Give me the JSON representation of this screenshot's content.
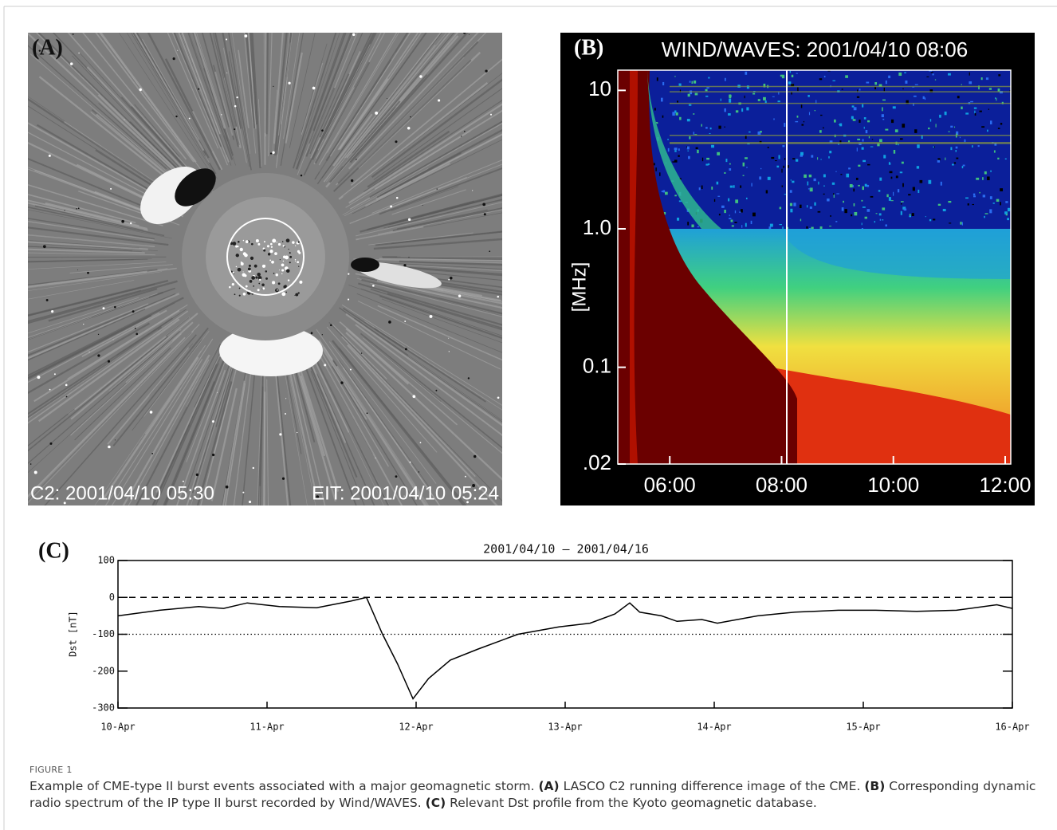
{
  "panel_a": {
    "label": "(A)",
    "left_stamp": "C2: 2001/04/10 05:30",
    "right_stamp": "EIT: 2001/04/10 05:24"
  },
  "chart_data": [
    {
      "type": "spectrogram",
      "panel_label": "(B)",
      "title": "WIND/WAVES: 2001/04/10 08:06",
      "ylabel": "[MHz]",
      "log_y": true,
      "ylim": [
        0.02,
        14
      ],
      "yticks": [
        10,
        {
          "value": 1,
          "label": "1.0"
        },
        0.1,
        {
          "value": 0.02,
          "label": ".02"
        }
      ],
      "xlim": [
        5.07,
        12.1
      ],
      "xticks": [
        {
          "value": 6,
          "label": "06:00"
        },
        {
          "value": 8,
          "label": "08:00"
        },
        {
          "value": 10,
          "label": "10:00"
        },
        {
          "value": 12,
          "label": "12:00"
        }
      ]
    },
    {
      "type": "line",
      "panel_label": "(C)",
      "title": "2001/04/10 – 2001/04/16",
      "ylabel": "Dst [nT]",
      "color": "#000000",
      "x": [
        0,
        6.7,
        13,
        17,
        20.8,
        26,
        32,
        37.5,
        40,
        42.6,
        45,
        47.5,
        50,
        53.5,
        58,
        64.4,
        71,
        76,
        80,
        82.4,
        84,
        87.5,
        90,
        94,
        96.5,
        103,
        109,
        116,
        122,
        128.6,
        135,
        141.5,
        144
      ],
      "values": [
        -50,
        -35,
        -25,
        -30,
        -15,
        -25,
        -28,
        -10,
        0,
        -100,
        -180,
        -275,
        -220,
        -170,
        -140,
        -100,
        -80,
        -70,
        -45,
        -15,
        -40,
        -50,
        -65,
        -60,
        -70,
        -50,
        -40,
        -35,
        -35,
        -38,
        -35,
        -20,
        -30
      ],
      "xlim": [
        0,
        144
      ],
      "xticks": [
        {
          "value": 0,
          "label": "10-Apr"
        },
        {
          "value": 24,
          "label": "11-Apr"
        },
        {
          "value": 48,
          "label": "12-Apr"
        },
        {
          "value": 72,
          "label": "13-Apr"
        },
        {
          "value": 96,
          "label": "14-Apr"
        },
        {
          "value": 120,
          "label": "15-Apr"
        },
        {
          "value": 144,
          "label": "16-Apr"
        }
      ],
      "ylim": [
        -300,
        100
      ],
      "yticks": [
        100,
        0,
        -100,
        -200,
        -300
      ],
      "reference_lines": [
        {
          "value": 0,
          "style": "dashed"
        },
        {
          "value": -100,
          "style": "dotted"
        }
      ]
    }
  ],
  "caption": {
    "label": "FIGURE 1",
    "intro": "Example of CME-type II burst events associated with a major geomagnetic storm.",
    "items": [
      {
        "tag": "(A)",
        "text": "LASCO C2 running difference image of the CME."
      },
      {
        "tag": "(B)",
        "text": "Corresponding dynamic radio spectrum of the IP type II burst recorded by Wind/WAVES."
      },
      {
        "tag": "(C)",
        "text": "Relevant Dst profile from the Kyoto geomagnetic database."
      }
    ]
  }
}
